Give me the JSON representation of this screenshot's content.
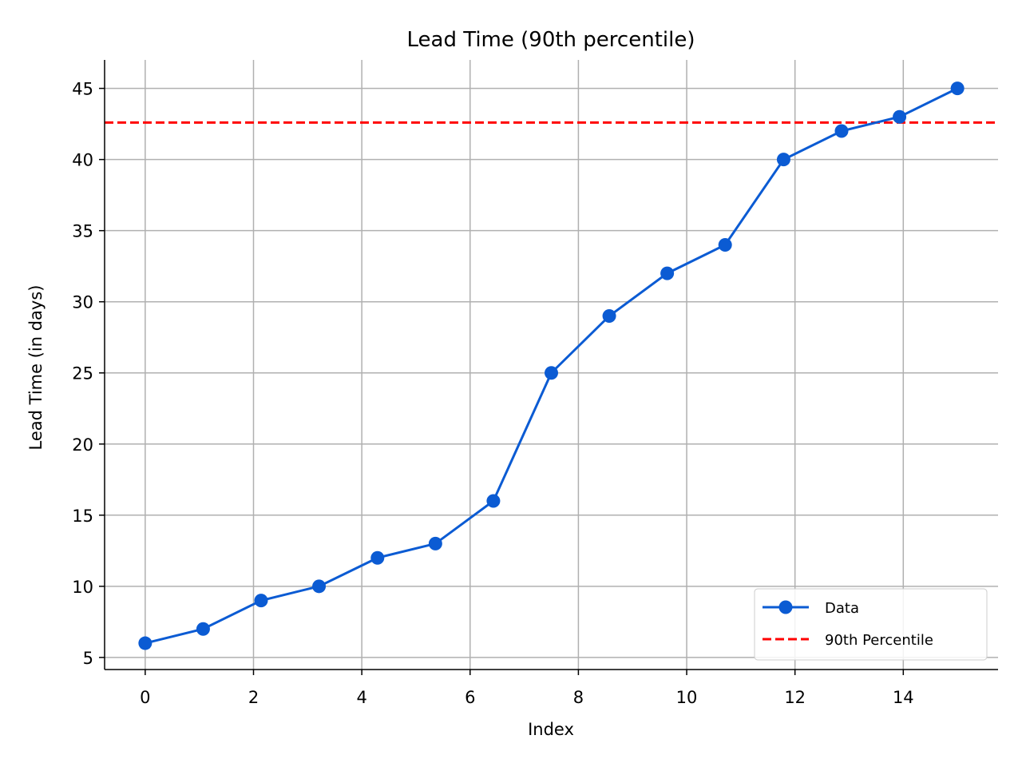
{
  "chart_data": {
    "type": "line",
    "title": "Lead Time (90th percentile)",
    "xlabel": "Index",
    "ylabel": "Lead Time (in days)",
    "xlim": [
      -0.75,
      15.75
    ],
    "ylim": [
      4.15,
      47.0
    ],
    "xticks": [
      0,
      2,
      4,
      6,
      8,
      10,
      12,
      14
    ],
    "yticks": [
      5,
      10,
      15,
      20,
      25,
      30,
      35,
      40,
      45
    ],
    "grid": true,
    "legend": "bottom-right",
    "series": [
      {
        "name": "Data",
        "color": "#0b5bd3",
        "marker": "circle",
        "x": [
          0,
          1.07,
          2.14,
          3.21,
          4.29,
          5.36,
          6.43,
          7.5,
          8.57,
          9.64,
          10.71,
          11.79,
          12.86,
          13.93,
          15
        ],
        "y": [
          6,
          7,
          9,
          10,
          12,
          13,
          16,
          25,
          29,
          32,
          34,
          40,
          42,
          43,
          45
        ]
      }
    ],
    "hlines": [
      {
        "name": "90th Percentile",
        "y": 42.6,
        "color": "#ff0000",
        "style": "dashed"
      }
    ]
  }
}
